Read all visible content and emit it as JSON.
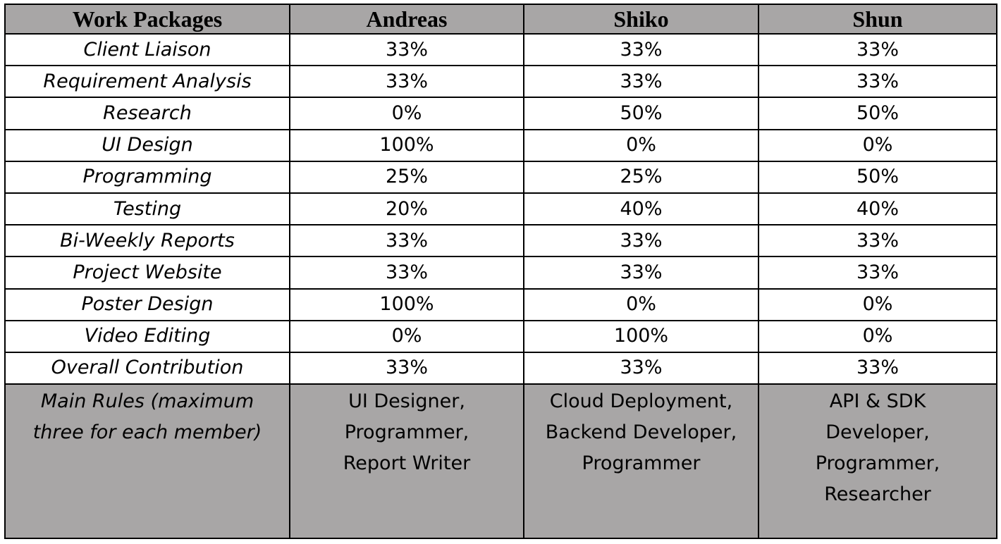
{
  "table": {
    "headers": [
      "Work Packages",
      "Andreas",
      "Shiko",
      "Shun"
    ],
    "rows": [
      {
        "package": "Client Liaison",
        "values": [
          "33%",
          "33%",
          "33%"
        ]
      },
      {
        "package": "Requirement Analysis",
        "values": [
          "33%",
          "33%",
          "33%"
        ]
      },
      {
        "package": "Research",
        "values": [
          "0%",
          "50%",
          "50%"
        ]
      },
      {
        "package": "UI Design",
        "values": [
          "100%",
          "0%",
          "0%"
        ]
      },
      {
        "package": "Programming",
        "values": [
          "25%",
          "25%",
          "50%"
        ]
      },
      {
        "package": "Testing",
        "values": [
          "20%",
          "40%",
          "40%"
        ]
      },
      {
        "package": "Bi-Weekly Reports",
        "values": [
          "33%",
          "33%",
          "33%"
        ]
      },
      {
        "package": "Project Website",
        "values": [
          "33%",
          "33%",
          "33%"
        ]
      },
      {
        "package": "Poster Design",
        "values": [
          "100%",
          "0%",
          "0%"
        ]
      },
      {
        "package": "Video Editing",
        "values": [
          "0%",
          "100%",
          "0%"
        ]
      },
      {
        "package": "Overall Contribution",
        "values": [
          "33%",
          "33%",
          "33%"
        ]
      }
    ],
    "rules": {
      "label_lines": [
        "Main Rules (maximum",
        "three for each member)"
      ],
      "members": [
        [
          "UI Designer,",
          "Programmer,",
          "Report Writer"
        ],
        [
          "Cloud Deployment,",
          "Backend Developer,",
          "Programmer"
        ],
        [
          "API & SDK",
          "Developer,",
          "Programmer,",
          "Researcher"
        ]
      ]
    },
    "colors": {
      "header_bg": "#a8a6a6",
      "body_bg": "#ffffff",
      "border": "#000000"
    }
  }
}
